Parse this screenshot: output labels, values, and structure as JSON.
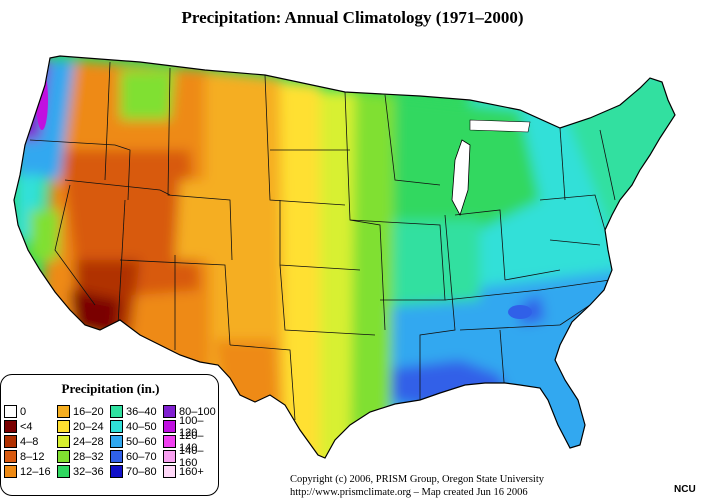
{
  "title": "Precipitation:  Annual Climatology (1971–2000)",
  "legend": {
    "title": "Precipitation (in.)",
    "columns": [
      [
        {
          "label": "0",
          "color": "#ffffff"
        },
        {
          "label": "<4",
          "color": "#7a0000"
        },
        {
          "label": "4–8",
          "color": "#b03000"
        },
        {
          "label": "8–12",
          "color": "#d85a10"
        },
        {
          "label": "12–16",
          "color": "#ee8a14"
        }
      ],
      [
        {
          "label": "16–20",
          "color": "#f5ae20"
        },
        {
          "label": "20–24",
          "color": "#ffe030"
        },
        {
          "label": "24–28",
          "color": "#d8f030"
        },
        {
          "label": "28–32",
          "color": "#80e030"
        },
        {
          "label": "32–36",
          "color": "#30d860"
        }
      ],
      [
        {
          "label": "36–40",
          "color": "#30e0a0"
        },
        {
          "label": "40–50",
          "color": "#30e0d8"
        },
        {
          "label": "50–60",
          "color": "#30a8f0"
        },
        {
          "label": "60–70",
          "color": "#3060e8"
        },
        {
          "label": "70–80",
          "color": "#1010c8"
        }
      ],
      [
        {
          "label": "80–100",
          "color": "#8020d0"
        },
        {
          "label": "100–120",
          "color": "#c010e0"
        },
        {
          "label": "120–140",
          "color": "#f040f0"
        },
        {
          "label": "140–160",
          "color": "#f8a0f0"
        },
        {
          "label": "160+",
          "color": "#ffd8f8"
        }
      ]
    ]
  },
  "copyright": "Copyright (c) 2006, PRISM Group, Oregon State University",
  "source_line": "http://www.prismclimate.org  –   Map created Jun 16 2006",
  "credit": "NCU"
}
